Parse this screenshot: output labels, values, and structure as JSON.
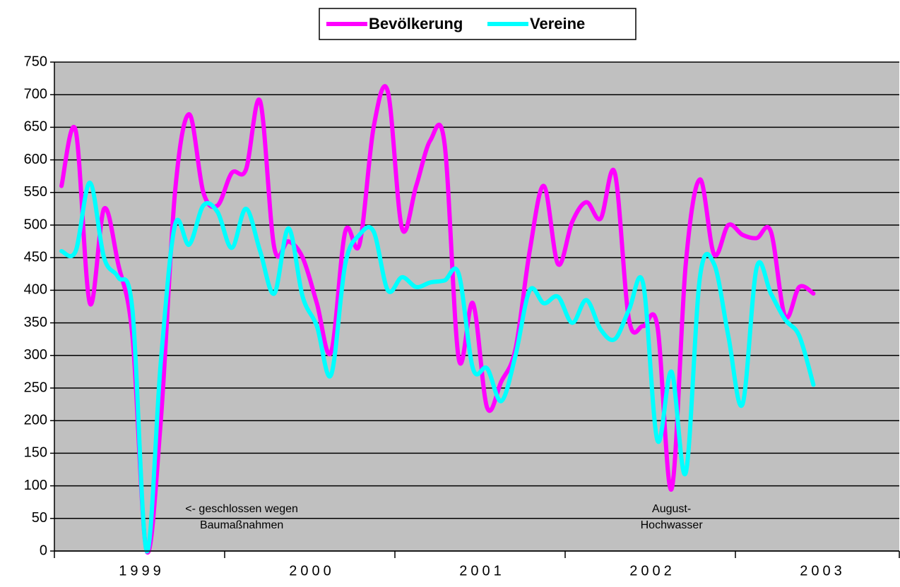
{
  "chart_data": {
    "type": "line",
    "categories": [
      null,
      null,
      null,
      null,
      null,
      null,
      null,
      null,
      null,
      null,
      null,
      null,
      null,
      null,
      null,
      null,
      null,
      null,
      null,
      null,
      null,
      null,
      null,
      null,
      null,
      null,
      null,
      null,
      null,
      null,
      null,
      null,
      null,
      null,
      null,
      null,
      null,
      null,
      null,
      null,
      null,
      null,
      null,
      null,
      null,
      null,
      null,
      null,
      null,
      null,
      null,
      null,
      null,
      null,
      null,
      null,
      null,
      null,
      null,
      null
    ],
    "x_group_labels": [
      "1999",
      "2000",
      "2001",
      "2002",
      "2003"
    ],
    "series": [
      {
        "name": "Bevölkerung",
        "color": "#ff00ff",
        "values": [
          560,
          645,
          380,
          525,
          440,
          330,
          0,
          200,
          550,
          670,
          550,
          530,
          580,
          585,
          690,
          465,
          475,
          450,
          380,
          305,
          490,
          470,
          650,
          705,
          495,
          560,
          630,
          625,
          295,
          380,
          220,
          260,
          310,
          460,
          560,
          440,
          505,
          535,
          510,
          580,
          355,
          345,
          345,
          95,
          440,
          570,
          455,
          500,
          485,
          480,
          490,
          360,
          405,
          395,
          null,
          null,
          null,
          null,
          null,
          null
        ]
      },
      {
        "name": "Vereine",
        "color": "#00ffff",
        "values": [
          460,
          460,
          565,
          450,
          420,
          370,
          0,
          290,
          500,
          470,
          530,
          520,
          465,
          525,
          460,
          395,
          495,
          390,
          345,
          270,
          440,
          485,
          490,
          400,
          420,
          405,
          412,
          415,
          425,
          280,
          280,
          230,
          300,
          400,
          380,
          390,
          350,
          385,
          340,
          325,
          370,
          410,
          170,
          275,
          120,
          420,
          440,
          330,
          225,
          435,
          395,
          355,
          330,
          255,
          null,
          null,
          null,
          null,
          null,
          null
        ]
      }
    ],
    "ylim": [
      0,
      750
    ],
    "yticks": [
      0,
      50,
      100,
      150,
      200,
      250,
      300,
      350,
      400,
      450,
      500,
      550,
      600,
      650,
      700,
      750
    ],
    "grid": true,
    "smooth": true,
    "legend": "top",
    "annotations": [
      {
        "lines": [
          "<- geschlossen wegen",
          "Baumaßnahmen"
        ],
        "index": 13
      },
      {
        "lines": [
          "August-",
          "Hochwasser"
        ],
        "index": 43
      }
    ]
  }
}
